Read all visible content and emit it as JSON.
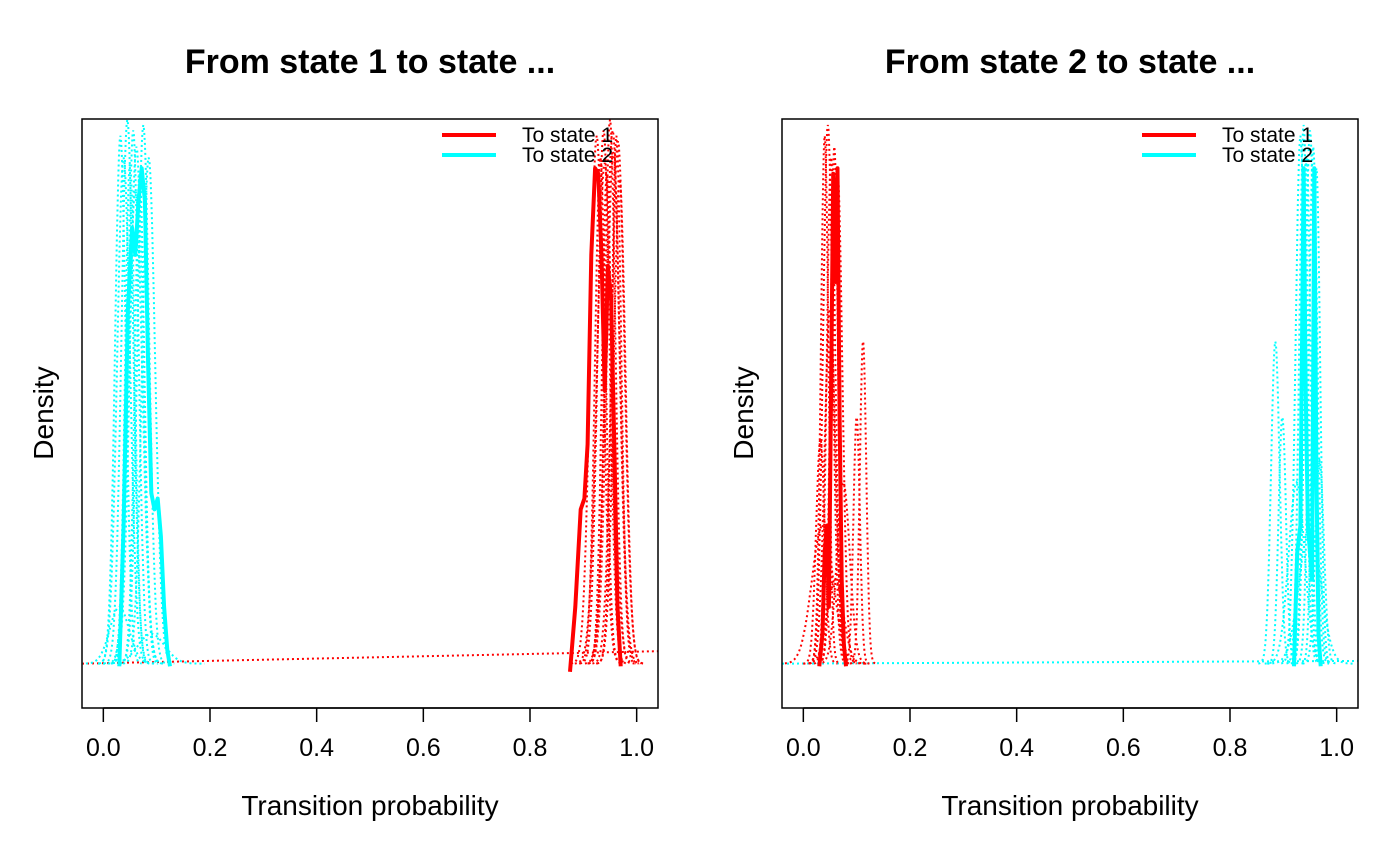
{
  "colors": {
    "to_state_1": "#ff0000",
    "to_state_2": "#00ffff",
    "frame": "#000000"
  },
  "chart_data": [
    {
      "type": "line",
      "title": "From state 1 to state ...",
      "xlabel": "Transition probability",
      "ylabel": "Density",
      "xlim": [
        -0.04,
        1.04
      ],
      "ylim": [
        0,
        1.04
      ],
      "xticks": [
        0.0,
        0.2,
        0.4,
        0.6,
        0.8,
        1.0
      ],
      "xtick_labels": [
        "0.0",
        "0.2",
        "0.4",
        "0.6",
        "0.8",
        "1.0"
      ],
      "yticks_shown": false,
      "legend": {
        "position": "top-right",
        "entries": [
          "To state 1",
          "To state 2"
        ]
      },
      "series": [
        {
          "name": "To state 1",
          "style": "solid",
          "color": "#ff0000",
          "x": [
            0.875,
            0.885,
            0.895,
            0.902,
            0.908,
            0.915,
            0.922,
            0.928,
            0.934,
            0.94,
            0.946,
            0.952,
            0.958,
            0.964,
            0.97
          ],
          "y": [
            0.03,
            0.15,
            0.33,
            0.35,
            0.45,
            0.8,
            0.96,
            0.95,
            0.8,
            0.55,
            0.78,
            0.72,
            0.45,
            0.15,
            0.04
          ]
        },
        {
          "name": "To state 2",
          "style": "solid",
          "color": "#00ffff",
          "x": [
            0.03,
            0.038,
            0.046,
            0.054,
            0.06,
            0.066,
            0.072,
            0.078,
            0.084,
            0.09,
            0.096,
            0.102,
            0.108,
            0.114,
            0.12,
            0.125
          ],
          "y": [
            0.04,
            0.3,
            0.7,
            0.85,
            0.8,
            0.9,
            0.96,
            0.9,
            0.6,
            0.36,
            0.33,
            0.35,
            0.28,
            0.15,
            0.07,
            0.04
          ]
        }
      ],
      "dotted_draws": {
        "to_state_1": {
          "color": "#ff0000",
          "centers": [
            0.925,
            0.932,
            0.938,
            0.944,
            0.95,
            0.956,
            0.962,
            0.968,
            0.94,
            0.955,
            0.965
          ],
          "sds": [
            0.012,
            0.01,
            0.011,
            0.009,
            0.01,
            0.012,
            0.009,
            0.011,
            0.014,
            0.013,
            0.012
          ],
          "heights": [
            1.02,
            0.98,
            1.03,
            0.95,
            1.05,
            0.99,
            1.02,
            0.94,
            0.97,
            1.03,
            1.01
          ]
        },
        "to_state_2": {
          "color": "#00ffff",
          "centers": [
            0.032,
            0.038,
            0.045,
            0.05,
            0.056,
            0.062,
            0.068,
            0.06,
            0.075,
            0.085,
            0.03,
            0.09
          ],
          "sds": [
            0.01,
            0.012,
            0.011,
            0.009,
            0.01,
            0.012,
            0.009,
            0.013,
            0.011,
            0.012,
            0.018,
            0.025
          ],
          "heights": [
            1.02,
            0.98,
            1.05,
            0.97,
            1.03,
            1.0,
            0.95,
            0.92,
            1.04,
            0.98,
            0.15,
            0.1
          ]
        },
        "baseline": {
          "color": "#ff0000",
          "x": [
            -0.04,
            1.04
          ],
          "y": [
            0.045,
            0.068
          ]
        }
      }
    },
    {
      "type": "line",
      "title": "From state 2 to state ...",
      "xlabel": "Transition probability",
      "ylabel": "Density",
      "xlim": [
        -0.04,
        1.04
      ],
      "ylim": [
        0,
        1.04
      ],
      "xticks": [
        0.0,
        0.2,
        0.4,
        0.6,
        0.8,
        1.0
      ],
      "xtick_labels": [
        "0.0",
        "0.2",
        "0.4",
        "0.6",
        "0.8",
        "1.0"
      ],
      "yticks_shown": false,
      "legend": {
        "position": "top-right",
        "entries": [
          "To state 1",
          "To state 2"
        ]
      },
      "series": [
        {
          "name": "To state 1",
          "style": "solid",
          "color": "#ff0000",
          "x": [
            0.03,
            0.036,
            0.04,
            0.044,
            0.048,
            0.052,
            0.056,
            0.06,
            0.064,
            0.068,
            0.072,
            0.076,
            0.08
          ],
          "y": [
            0.04,
            0.1,
            0.25,
            0.3,
            0.15,
            0.55,
            0.95,
            0.75,
            0.96,
            0.5,
            0.2,
            0.08,
            0.04
          ]
        },
        {
          "name": "To state 2",
          "style": "solid",
          "color": "#00ffff",
          "x": [
            0.92,
            0.926,
            0.932,
            0.938,
            0.942,
            0.946,
            0.95,
            0.954,
            0.958,
            0.962,
            0.966,
            0.97
          ],
          "y": [
            0.04,
            0.25,
            0.3,
            0.96,
            0.55,
            0.3,
            0.25,
            0.2,
            0.96,
            0.4,
            0.1,
            0.04
          ]
        }
      ],
      "dotted_draws": {
        "to_state_1": {
          "color": "#ff0000",
          "centers": [
            0.032,
            0.04,
            0.046,
            0.052,
            0.058,
            0.064,
            0.1,
            0.112,
            0.06,
            0.036,
            0.075,
            0.05
          ],
          "sds": [
            0.008,
            0.007,
            0.009,
            0.008,
            0.007,
            0.009,
            0.006,
            0.006,
            0.015,
            0.02,
            0.012,
            0.01
          ],
          "heights": [
            0.46,
            1.02,
            1.04,
            0.98,
            1.0,
            0.96,
            0.5,
            0.64,
            0.2,
            0.3,
            0.38,
            0.7
          ]
        },
        "to_state_2": {
          "color": "#00ffff",
          "centers": [
            0.885,
            0.898,
            0.932,
            0.938,
            0.944,
            0.95,
            0.956,
            0.962,
            0.968,
            0.925,
            0.95
          ],
          "sds": [
            0.008,
            0.007,
            0.009,
            0.008,
            0.007,
            0.009,
            0.008,
            0.007,
            0.008,
            0.015,
            0.02
          ],
          "heights": [
            0.64,
            0.5,
            1.02,
            1.04,
            0.98,
            1.03,
            1.0,
            0.96,
            0.42,
            0.38,
            0.3
          ]
        },
        "baseline": {
          "color": "#00ffff",
          "x": [
            -0.04,
            1.04
          ],
          "y": [
            0.045,
            0.05
          ]
        }
      }
    }
  ]
}
